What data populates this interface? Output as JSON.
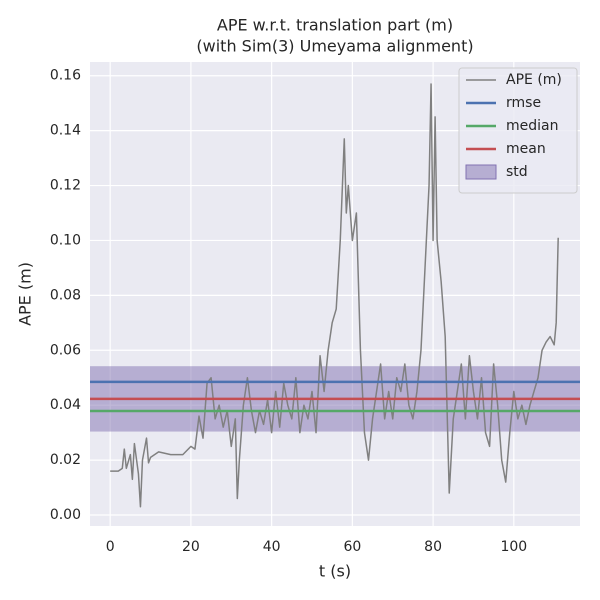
{
  "chart_data": {
    "type": "line",
    "title": "APE w.r.t. translation part (m)",
    "subtitle": "(with Sim(3) Umeyama alignment)",
    "xlabel": "t (s)",
    "ylabel": "APE (m)",
    "xlim": [
      -5,
      116.4
    ],
    "ylim": [
      -0.004,
      0.165
    ],
    "xticks": [
      0,
      20,
      40,
      60,
      80,
      100
    ],
    "yticks": [
      {
        "value": 0,
        "label": "0.00"
      },
      {
        "value": 0.02,
        "label": "0.02"
      },
      {
        "value": 0.04,
        "label": "0.04"
      },
      {
        "value": 0.06,
        "label": "0.06"
      },
      {
        "value": 0.08,
        "label": "0.08"
      },
      {
        "value": 0.1,
        "label": "0.10"
      },
      {
        "value": 0.12,
        "label": "0.12"
      },
      {
        "value": 0.14,
        "label": "0.14"
      },
      {
        "value": 0.16,
        "label": "0.16"
      }
    ],
    "grid": true,
    "legend": "upper right",
    "series": [
      {
        "name": "APE (m)",
        "color": "#808080",
        "x": [
          0,
          2,
          3,
          3.5,
          4,
          5,
          5.5,
          6,
          7,
          7.5,
          8,
          9,
          9.5,
          10,
          11,
          12,
          15,
          18,
          20,
          21,
          22,
          23,
          24,
          25,
          26,
          27,
          28,
          29,
          30,
          31,
          31.5,
          32,
          33,
          34,
          35,
          36,
          37,
          38,
          39,
          40,
          41,
          42,
          43,
          44,
          45,
          46,
          47,
          48,
          49,
          50,
          51,
          52,
          53,
          54,
          55,
          56,
          57,
          58,
          58.5,
          59,
          60,
          61,
          62,
          63,
          64,
          65,
          66,
          67,
          68,
          69,
          70,
          71,
          72,
          73,
          74,
          75,
          76,
          77,
          78,
          79,
          79.5,
          80,
          80.5,
          81,
          82,
          83,
          84,
          85,
          86,
          87,
          88,
          89,
          90,
          91,
          92,
          93,
          94,
          95,
          96,
          97,
          98,
          99,
          100,
          101,
          102,
          103,
          104,
          105,
          106,
          107,
          108,
          109,
          110,
          110.5,
          111
        ],
        "values": [
          0.016,
          0.016,
          0.017,
          0.024,
          0.017,
          0.022,
          0.013,
          0.026,
          0.015,
          0.003,
          0.02,
          0.028,
          0.019,
          0.021,
          0.022,
          0.023,
          0.022,
          0.022,
          0.025,
          0.024,
          0.036,
          0.028,
          0.048,
          0.05,
          0.035,
          0.04,
          0.032,
          0.038,
          0.025,
          0.035,
          0.006,
          0.02,
          0.04,
          0.05,
          0.038,
          0.03,
          0.038,
          0.033,
          0.042,
          0.03,
          0.045,
          0.032,
          0.048,
          0.04,
          0.035,
          0.05,
          0.03,
          0.04,
          0.035,
          0.045,
          0.03,
          0.058,
          0.045,
          0.06,
          0.07,
          0.075,
          0.1,
          0.137,
          0.11,
          0.12,
          0.1,
          0.11,
          0.06,
          0.03,
          0.02,
          0.035,
          0.045,
          0.055,
          0.035,
          0.045,
          0.035,
          0.05,
          0.045,
          0.055,
          0.04,
          0.035,
          0.045,
          0.06,
          0.09,
          0.12,
          0.157,
          0.1,
          0.145,
          0.1,
          0.085,
          0.065,
          0.008,
          0.035,
          0.045,
          0.055,
          0.035,
          0.058,
          0.045,
          0.035,
          0.05,
          0.03,
          0.025,
          0.055,
          0.04,
          0.02,
          0.012,
          0.03,
          0.045,
          0.035,
          0.04,
          0.033,
          0.04,
          0.045,
          0.05,
          0.06,
          0.063,
          0.065,
          0.062,
          0.07,
          0.101
        ]
      }
    ],
    "lines": [
      {
        "name": "rmse",
        "value": 0.0485,
        "color": "#4c72b0"
      },
      {
        "name": "median",
        "value": 0.0379,
        "color": "#55a868"
      },
      {
        "name": "mean",
        "value": 0.0423,
        "color": "#c44e52"
      }
    ],
    "std": {
      "name": "std",
      "value": 0.0119,
      "color": "#8172b2"
    }
  }
}
